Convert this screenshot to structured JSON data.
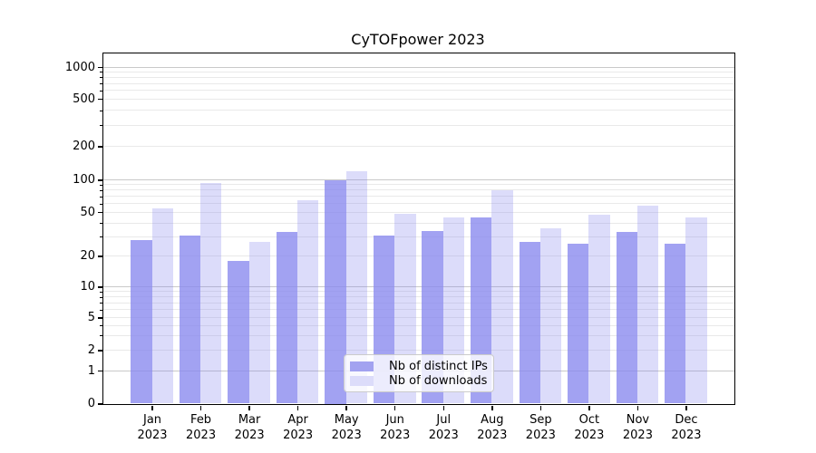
{
  "chart_data": {
    "type": "bar",
    "title": "CyTOFpower 2023",
    "categories": [
      "Jan",
      "Feb",
      "Mar",
      "Apr",
      "May",
      "Jun",
      "Jul",
      "Aug",
      "Sep",
      "Oct",
      "Nov",
      "Dec"
    ],
    "category_year": "2023",
    "series": [
      {
        "name": "Nb of distinct IPs",
        "swatch_color": "#a2a2f0",
        "fill_color": "rgba(136,136,238,0.78)",
        "values": [
          28,
          31,
          18,
          33,
          100,
          31,
          34,
          45,
          27,
          26,
          33,
          26
        ]
      },
      {
        "name": "Nb of downloads",
        "swatch_color": "#dcdcfa",
        "fill_color": "rgba(136,136,238,0.29)",
        "values": [
          54,
          93,
          27,
          65,
          120,
          48,
          45,
          80,
          36,
          47,
          58,
          45
        ]
      }
    ],
    "yscale": "symlog",
    "y_ticks": [
      0,
      1,
      2,
      5,
      10,
      20,
      50,
      100,
      200,
      500,
      1000
    ],
    "y_minor_gridlines": [
      2,
      3,
      4,
      5,
      6,
      7,
      8,
      9,
      20,
      30,
      40,
      50,
      60,
      70,
      80,
      90,
      200,
      300,
      400,
      500,
      600,
      700,
      800,
      900
    ],
    "y_major_gridlines": [
      1,
      10,
      100,
      1000
    ],
    "ylim": [
      0,
      1300
    ],
    "xlabel": "",
    "ylabel": "",
    "grid": true,
    "legend_position": "lower center",
    "colors": {
      "axis": "#000000",
      "major_grid": "#c9c9c9",
      "minor_grid": "#e9e9e9",
      "background": "#ffffff"
    }
  }
}
